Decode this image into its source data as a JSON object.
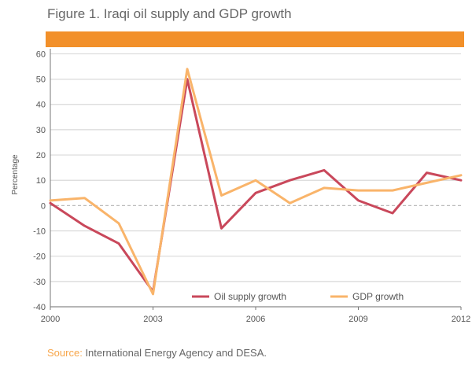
{
  "figure": {
    "title": "Figure 1. Iraqi oil supply and GDP growth",
    "source_label": "Source:",
    "source_text": "International Energy Agency and DESA."
  },
  "colors": {
    "banner": "#f2902a",
    "oil_supply": "#c9485b",
    "gdp": "#f9b46a",
    "grid": "#d9d9d9",
    "axis_text": "#555555"
  },
  "chart_data": {
    "type": "line",
    "title": "Figure 1. Iraqi oil supply and GDP growth",
    "xlabel": "",
    "ylabel": "Percentage",
    "x": [
      2000,
      2001,
      2002,
      2003,
      2004,
      2005,
      2006,
      2007,
      2008,
      2009,
      2010,
      2011,
      2012
    ],
    "x_ticks": [
      "2000",
      "2003",
      "2006",
      "2009",
      "2012"
    ],
    "y_ticks": [
      60,
      50,
      40,
      30,
      20,
      10,
      0,
      -10,
      -20,
      -30,
      -40
    ],
    "ylim": [
      -40,
      62
    ],
    "xlim": [
      2000,
      2012
    ],
    "grid": true,
    "legend_position": "bottom-right",
    "series": [
      {
        "name": "Oil supply growth",
        "color": "#c9485b",
        "values": [
          1,
          -8,
          -15,
          -34,
          50,
          -9,
          5,
          10,
          14,
          2,
          -3,
          13,
          10
        ]
      },
      {
        "name": "GDP growth",
        "color": "#f9b46a",
        "values": [
          2,
          3,
          -7,
          -35,
          54,
          4,
          10,
          1,
          7,
          6,
          6,
          9,
          12
        ]
      }
    ]
  }
}
